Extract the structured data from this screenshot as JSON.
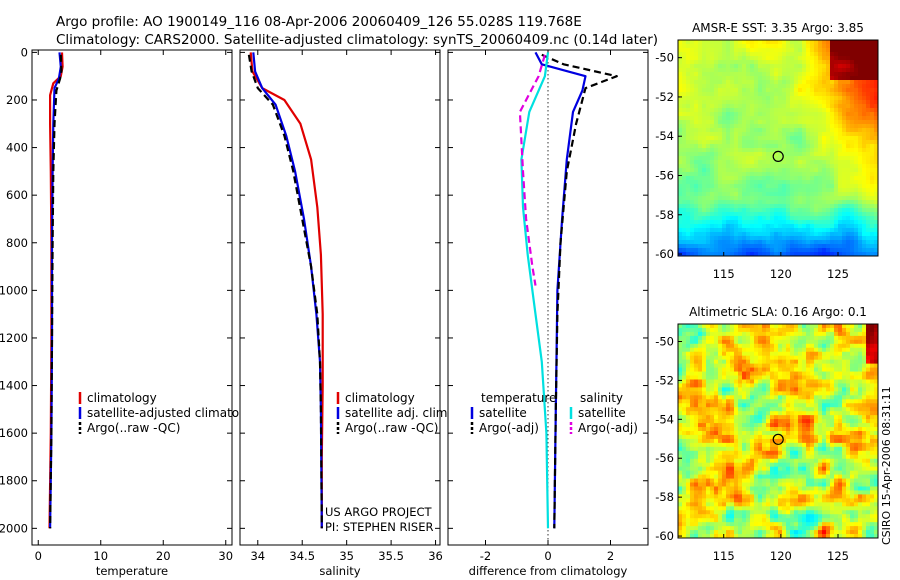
{
  "header": {
    "line1": "Argo profile: AO 1900149_116 08-Apr-2006 20060409_126 55.028S 119.768E",
    "line2": "Climatology: CARS2000. Satellite-adjusted climatology: synTS_20060409.nc (0.14d later)"
  },
  "side_note": "CSIRO 15-Apr-2006 08:31:11",
  "colors": {
    "climatology": "#e00000",
    "satellite": "#0000e0",
    "argo": "#000000",
    "sal_sat": "#00e0e0",
    "sal_argo": "#e000e0"
  },
  "chart_data": [
    {
      "type": "line",
      "xlabel": "temperature",
      "ylabel": "",
      "xlim": [
        -1,
        31
      ],
      "ylim": [
        2070,
        -10
      ],
      "xticks": [
        0,
        10,
        20,
        30
      ],
      "yticks": [
        0,
        200,
        400,
        600,
        800,
        1000,
        1200,
        1400,
        1600,
        1800,
        2000
      ],
      "legend": [
        "climatology",
        "satellite-adjusted climatology",
        "Argo(..raw -QC)"
      ],
      "legend_position": "bottom-center",
      "series": [
        {
          "name": "climatology",
          "style": "solid",
          "color": "climatology",
          "points": [
            [
              3.8,
              0
            ],
            [
              3.9,
              60
            ],
            [
              3.6,
              100
            ],
            [
              2.4,
              130
            ],
            [
              1.9,
              180
            ],
            [
              1.9,
              300
            ],
            [
              2.0,
              500
            ],
            [
              2.1,
              800
            ],
            [
              2.1,
              1200
            ],
            [
              2.0,
              1600
            ],
            [
              1.8,
              2000
            ]
          ]
        },
        {
          "name": "satellite-adjusted climatology",
          "style": "solid",
          "color": "satellite",
          "points": [
            [
              3.4,
              0
            ],
            [
              3.6,
              60
            ],
            [
              3.3,
              110
            ],
            [
              2.6,
              150
            ],
            [
              2.4,
              300
            ],
            [
              2.3,
              500
            ],
            [
              2.2,
              800
            ],
            [
              2.2,
              1200
            ],
            [
              2.1,
              1600
            ],
            [
              1.9,
              2000
            ]
          ]
        },
        {
          "name": "Argo(..raw -QC)",
          "style": "dashed",
          "color": "argo",
          "points": [
            [
              3.6,
              10
            ],
            [
              3.7,
              80
            ],
            [
              3.5,
              110
            ],
            [
              2.9,
              160
            ],
            [
              2.6,
              300
            ],
            [
              2.4,
              500
            ],
            [
              2.3,
              800
            ],
            [
              2.2,
              1200
            ],
            [
              2.1,
              1600
            ],
            [
              1.9,
              2000
            ]
          ]
        }
      ]
    },
    {
      "type": "line",
      "xlabel": "salinity",
      "ylabel": "",
      "xlim": [
        33.8,
        36.05
      ],
      "ylim": [
        2070,
        -10
      ],
      "xticks": [
        34,
        34.5,
        35,
        35.5,
        36
      ],
      "yticks": [
        0,
        200,
        400,
        600,
        800,
        1000,
        1200,
        1400,
        1600,
        1800,
        2000
      ],
      "legend": [
        "climatology",
        "satellite adj. clim.",
        "Argo(..raw -QC)"
      ],
      "legend_position": "bottom-right",
      "annotation": [
        "US ARGO PROJECT",
        "PI: STEPHEN RISER"
      ],
      "series": [
        {
          "name": "climatology",
          "style": "solid",
          "color": "climatology",
          "points": [
            [
              33.92,
              0
            ],
            [
              33.94,
              80
            ],
            [
              34.05,
              150
            ],
            [
              34.3,
              200
            ],
            [
              34.48,
              300
            ],
            [
              34.6,
              450
            ],
            [
              34.67,
              650
            ],
            [
              34.71,
              850
            ],
            [
              34.73,
              1100
            ],
            [
              34.73,
              1400
            ],
            [
              34.72,
              1700
            ],
            [
              34.72,
              2000
            ]
          ]
        },
        {
          "name": "satellite adj. clim.",
          "style": "solid",
          "color": "satellite",
          "points": [
            [
              33.95,
              0
            ],
            [
              33.97,
              80
            ],
            [
              34.05,
              150
            ],
            [
              34.2,
              220
            ],
            [
              34.32,
              350
            ],
            [
              34.42,
              500
            ],
            [
              34.52,
              700
            ],
            [
              34.6,
              900
            ],
            [
              34.66,
              1100
            ],
            [
              34.7,
              1300
            ],
            [
              34.71,
              1500
            ],
            [
              34.72,
              2000
            ]
          ]
        },
        {
          "name": "Argo(..raw -QC)",
          "style": "dashed",
          "color": "argo",
          "points": [
            [
              33.9,
              10
            ],
            [
              33.93,
              80
            ],
            [
              34.0,
              150
            ],
            [
              34.17,
              220
            ],
            [
              34.3,
              350
            ],
            [
              34.4,
              500
            ],
            [
              34.5,
              700
            ],
            [
              34.6,
              900
            ],
            [
              34.67,
              1100
            ],
            [
              34.7,
              1300
            ],
            [
              34.71,
              1500
            ],
            [
              34.72,
              2000
            ]
          ]
        }
      ]
    },
    {
      "type": "line",
      "xlabel": "difference from climatology",
      "ylabel": "",
      "xlim": [
        -3.2,
        3.2
      ],
      "ylim": [
        2070,
        -10
      ],
      "xticks": [
        -2,
        0,
        2
      ],
      "yticks": [
        0,
        200,
        400,
        600,
        800,
        1000,
        1200,
        1400,
        1600,
        1800,
        2000
      ],
      "zero_line": true,
      "legend_columns": [
        {
          "heading": "temperature",
          "items": [
            "satellite",
            "Argo(-adj)"
          ]
        },
        {
          "heading": "salinity",
          "items": [
            "satellite",
            "Argo(-adj)"
          ]
        }
      ],
      "legend_position": "bottom-center",
      "series": [
        {
          "name": "temperature satellite",
          "style": "solid",
          "color": "satellite",
          "points": [
            [
              -0.4,
              0
            ],
            [
              -0.2,
              50
            ],
            [
              1.2,
              100
            ],
            [
              1.1,
              160
            ],
            [
              0.8,
              250
            ],
            [
              0.6,
              450
            ],
            [
              0.45,
              700
            ],
            [
              0.3,
              1000
            ],
            [
              0.25,
              1500
            ],
            [
              0.2,
              2000
            ]
          ]
        },
        {
          "name": "temperature Argo(-adj)",
          "style": "dashed",
          "color": "argo",
          "points": [
            [
              -0.2,
              10
            ],
            [
              0.5,
              50
            ],
            [
              2.2,
              100
            ],
            [
              1.2,
              150
            ],
            [
              0.9,
              300
            ],
            [
              0.6,
              500
            ],
            [
              0.4,
              800
            ],
            [
              0.3,
              1100
            ],
            [
              0.25,
              1500
            ],
            [
              0.2,
              2000
            ]
          ]
        },
        {
          "name": "salinity satellite",
          "style": "solid",
          "color": "sal_sat",
          "points": [
            [
              0,
              0
            ],
            [
              -0.1,
              100
            ],
            [
              -0.6,
              250
            ],
            [
              -0.85,
              450
            ],
            [
              -0.8,
              650
            ],
            [
              -0.65,
              850
            ],
            [
              -0.4,
              1100
            ],
            [
              -0.2,
              1300
            ],
            [
              -0.05,
              1600
            ],
            [
              0,
              2000
            ]
          ]
        },
        {
          "name": "salinity Argo(-adj)",
          "style": "dashed",
          "color": "sal_argo",
          "points": [
            [
              -0.1,
              10
            ],
            [
              -0.3,
              100
            ],
            [
              -0.9,
              250
            ],
            [
              -0.8,
              500
            ],
            [
              -0.7,
              700
            ],
            [
              -0.5,
              900
            ],
            [
              -0.4,
              980
            ]
          ]
        }
      ]
    },
    {
      "type": "heatmap",
      "title": "AMSR-E SST: 3.35 Argo: 3.85",
      "xlim": [
        111,
        128.5
      ],
      "ylim": [
        -60.1,
        -49.1
      ],
      "xticks": [
        115,
        120,
        125
      ],
      "yticks": [
        -50,
        -52,
        -54,
        -56,
        -58,
        -60
      ],
      "marker": {
        "lon": 119.768,
        "lat": -55.028
      }
    },
    {
      "type": "heatmap",
      "title": "Altimetric SLA: 0.16 Argo: 0.1",
      "xlim": [
        111,
        128.5
      ],
      "ylim": [
        -60.1,
        -49.1
      ],
      "xticks": [
        115,
        120,
        125
      ],
      "yticks": [
        -50,
        -52,
        -54,
        -56,
        -58,
        -60
      ],
      "marker": {
        "lon": 119.768,
        "lat": -55.028
      }
    }
  ]
}
